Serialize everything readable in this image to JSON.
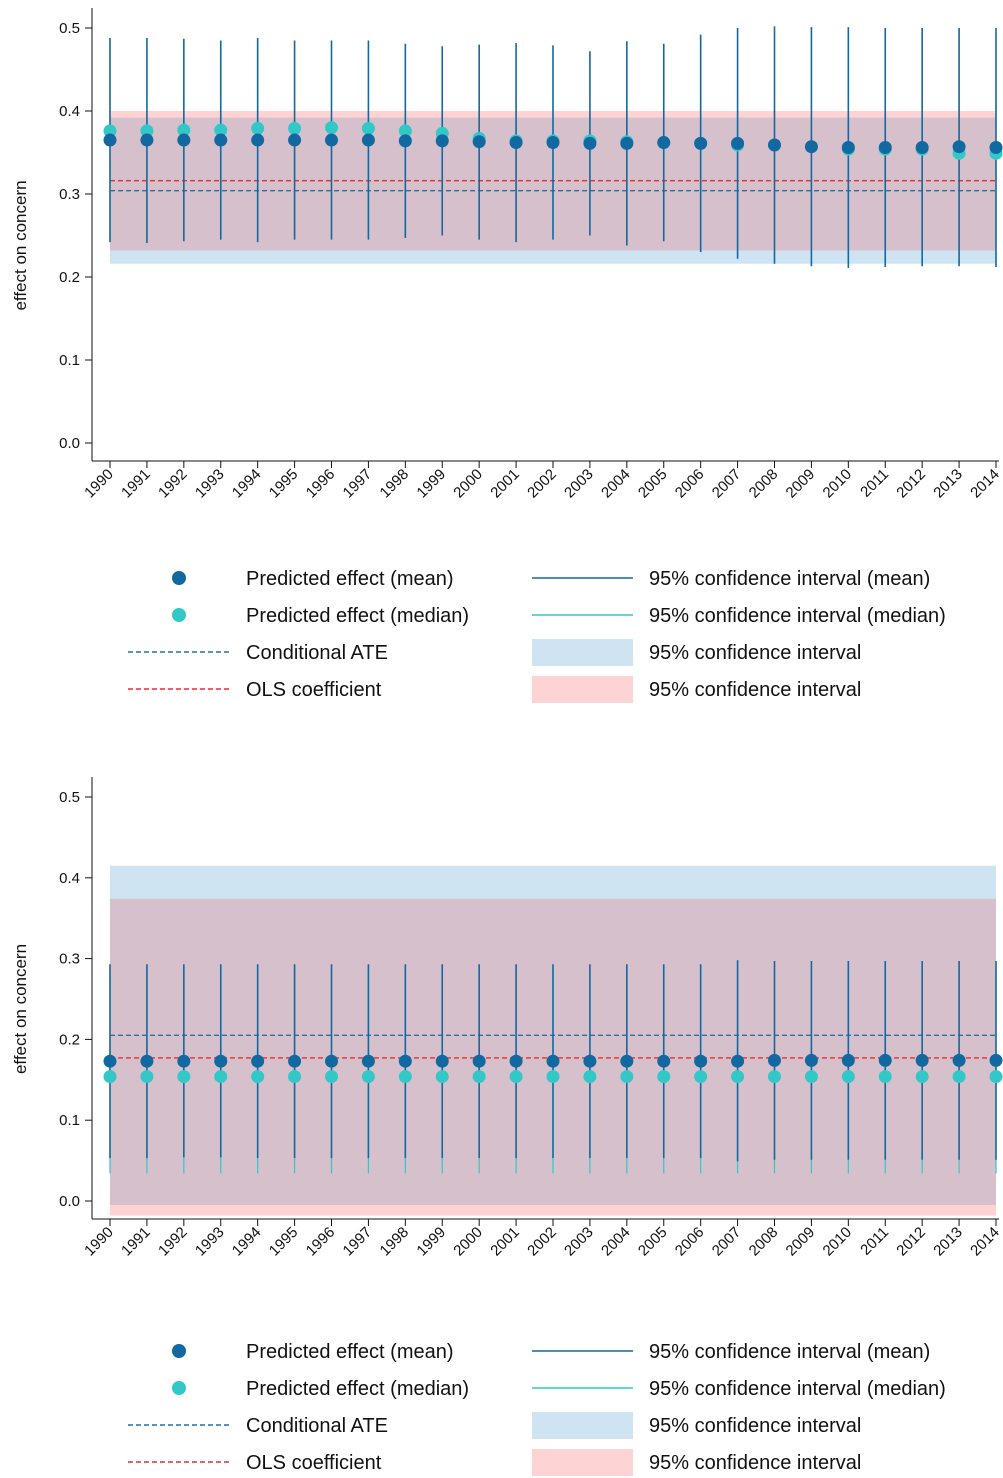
{
  "colors": {
    "mean": "#1268a0",
    "median": "#32c8c8",
    "ate_line": "#2a6f9e",
    "ols_line": "#e03030",
    "ate_band": "#cfe4f2",
    "ols_band": "#fdd3d3",
    "overlap_band": "#d6c0cc"
  },
  "legend": {
    "mean_point": "Predicted effect (mean)",
    "median_point": "Predicted effect (median)",
    "ate_line": "Conditional ATE",
    "ols_line": "OLS coefficient",
    "ci_mean": "95% confidence interval (mean)",
    "ci_median": "95% confidence interval (median)",
    "ate_band": "95% confidence interval",
    "ols_band": "95% confidence interval"
  },
  "chart_data": [
    {
      "type": "scatter",
      "ylabel": "effect on concern",
      "xlabel": "",
      "ylim": [
        0.0,
        0.5
      ],
      "yticks": [
        "0.0",
        "0.1",
        "0.2",
        "0.3",
        "0.4",
        "0.5"
      ],
      "categories": [
        "1990",
        "1991",
        "1992",
        "1993",
        "1994",
        "1995",
        "1996",
        "1997",
        "1998",
        "1999",
        "2000",
        "2001",
        "2002",
        "2003",
        "2004",
        "2005",
        "2006",
        "2007",
        "2008",
        "2009",
        "2010",
        "2011",
        "2012",
        "2013",
        "2014"
      ],
      "series": [
        {
          "name": "Predicted effect (mean)",
          "values": [
            0.365,
            0.365,
            0.365,
            0.365,
            0.365,
            0.365,
            0.365,
            0.365,
            0.364,
            0.364,
            0.363,
            0.362,
            0.362,
            0.361,
            0.361,
            0.362,
            0.361,
            0.361,
            0.359,
            0.357,
            0.356,
            0.356,
            0.356,
            0.357,
            0.356
          ],
          "ci_low": [
            0.242,
            0.241,
            0.243,
            0.245,
            0.242,
            0.245,
            0.245,
            0.245,
            0.247,
            0.25,
            0.245,
            0.242,
            0.245,
            0.25,
            0.238,
            0.243,
            0.23,
            0.222,
            0.216,
            0.213,
            0.211,
            0.212,
            0.213,
            0.213,
            0.212
          ],
          "ci_high": [
            0.488,
            0.488,
            0.487,
            0.485,
            0.488,
            0.485,
            0.485,
            0.485,
            0.481,
            0.478,
            0.48,
            0.482,
            0.479,
            0.472,
            0.484,
            0.481,
            0.492,
            0.5,
            0.502,
            0.501,
            0.501,
            0.5,
            0.5,
            0.5,
            0.5
          ]
        },
        {
          "name": "Predicted effect (median)",
          "values": [
            0.376,
            0.376,
            0.377,
            0.377,
            0.379,
            0.379,
            0.38,
            0.379,
            0.376,
            0.373,
            0.367,
            0.364,
            0.364,
            0.364,
            0.363,
            0.362,
            0.361,
            0.359,
            0.359,
            0.357,
            0.354,
            0.354,
            0.354,
            0.349,
            0.349
          ]
        }
      ],
      "conditional_ate": 0.304,
      "conditional_ate_ci": [
        0.216,
        0.392
      ],
      "ols_coefficient": 0.316,
      "ols_ci": [
        0.232,
        0.4
      ],
      "legend_position": "bottom"
    },
    {
      "type": "scatter",
      "ylabel": "effect on concern",
      "xlabel": "",
      "ylim": [
        0.0,
        0.5
      ],
      "yticks": [
        "0.0",
        "0.1",
        "0.2",
        "0.3",
        "0.4",
        "0.5"
      ],
      "categories": [
        "1990",
        "1991",
        "1992",
        "1993",
        "1994",
        "1995",
        "1996",
        "1997",
        "1998",
        "1999",
        "2000",
        "2001",
        "2002",
        "2003",
        "2004",
        "2005",
        "2006",
        "2007",
        "2008",
        "2009",
        "2010",
        "2011",
        "2012",
        "2013",
        "2014"
      ],
      "series": [
        {
          "name": "Predicted effect (mean)",
          "values": [
            0.173,
            0.173,
            0.173,
            0.173,
            0.173,
            0.173,
            0.173,
            0.173,
            0.173,
            0.173,
            0.173,
            0.173,
            0.173,
            0.173,
            0.173,
            0.173,
            0.173,
            0.173,
            0.174,
            0.174,
            0.174,
            0.174,
            0.174,
            0.174,
            0.174
          ],
          "ci_low": [
            0.053,
            0.053,
            0.054,
            0.054,
            0.053,
            0.053,
            0.053,
            0.053,
            0.053,
            0.053,
            0.053,
            0.053,
            0.053,
            0.053,
            0.053,
            0.053,
            0.053,
            0.049,
            0.051,
            0.051,
            0.051,
            0.051,
            0.051,
            0.051,
            0.051
          ],
          "ci_high": [
            0.293,
            0.293,
            0.293,
            0.293,
            0.293,
            0.293,
            0.293,
            0.293,
            0.293,
            0.293,
            0.293,
            0.293,
            0.293,
            0.293,
            0.293,
            0.293,
            0.293,
            0.298,
            0.297,
            0.297,
            0.297,
            0.297,
            0.297,
            0.297,
            0.297
          ]
        },
        {
          "name": "Predicted effect (median)",
          "values": [
            0.154,
            0.154,
            0.154,
            0.154,
            0.154,
            0.154,
            0.154,
            0.154,
            0.154,
            0.154,
            0.154,
            0.154,
            0.154,
            0.154,
            0.154,
            0.154,
            0.154,
            0.154,
            0.154,
            0.154,
            0.154,
            0.154,
            0.154,
            0.154,
            0.154
          ],
          "ci_low": [
            0.034,
            0.034,
            0.034,
            0.034,
            0.034,
            0.034,
            0.034,
            0.034,
            0.034,
            0.034,
            0.034,
            0.034,
            0.034,
            0.034,
            0.034,
            0.034,
            0.034,
            0.034,
            0.034,
            0.034,
            0.034,
            0.034,
            0.034,
            0.034,
            0.034
          ],
          "ci_high": [
            0.057,
            0.057,
            0.057,
            0.057,
            0.057,
            0.057,
            0.057,
            0.057,
            0.057,
            0.057,
            0.057,
            0.057,
            0.057,
            0.057,
            0.057,
            0.057,
            0.057,
            0.057,
            0.057,
            0.057,
            0.057,
            0.057,
            0.057,
            0.057,
            0.057
          ]
        }
      ],
      "conditional_ate": 0.205,
      "conditional_ate_ci": [
        -0.005,
        0.415
      ],
      "ols_coefficient": 0.177,
      "ols_ci": [
        -0.018,
        0.374
      ],
      "legend_position": "bottom"
    }
  ]
}
